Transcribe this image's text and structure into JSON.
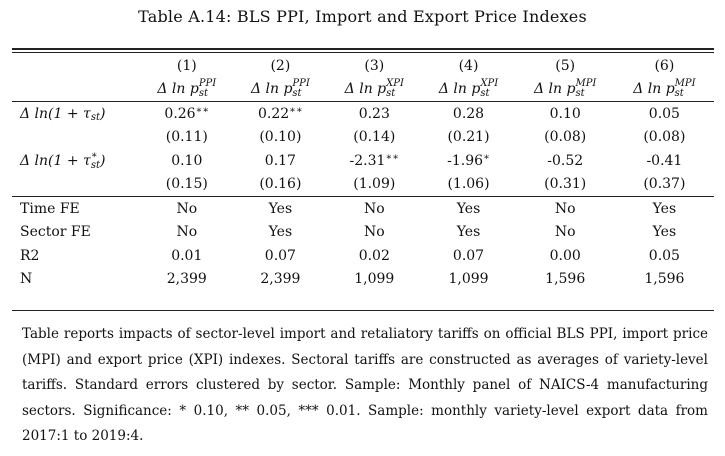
{
  "title": "Table A.14: BLS PPI, Import and Export Price Indexes",
  "columns": [
    {
      "number": "(1)",
      "dep_base": "Δ ln p",
      "dep_sup": "PPI",
      "dep_sub": "st"
    },
    {
      "number": "(2)",
      "dep_base": "Δ ln p",
      "dep_sup": "PPI",
      "dep_sub": "st"
    },
    {
      "number": "(3)",
      "dep_base": "Δ ln p",
      "dep_sup": "XPI",
      "dep_sub": "st"
    },
    {
      "number": "(4)",
      "dep_base": "Δ ln p",
      "dep_sup": "XPI",
      "dep_sub": "st"
    },
    {
      "number": "(5)",
      "dep_base": "Δ ln p",
      "dep_sup": "MPI",
      "dep_sub": "st"
    },
    {
      "number": "(6)",
      "dep_base": "Δ ln p",
      "dep_sup": "MPI",
      "dep_sub": "st"
    }
  ],
  "regressors": [
    {
      "label_pre": "Δ ln(1 + τ",
      "label_sub": "st",
      "label_sup": "",
      "label_post": ")",
      "coefficients": [
        {
          "value": "0.26",
          "stars": "∗∗"
        },
        {
          "value": "0.22",
          "stars": "∗∗"
        },
        {
          "value": "0.23",
          "stars": ""
        },
        {
          "value": "0.28",
          "stars": ""
        },
        {
          "value": "0.10",
          "stars": ""
        },
        {
          "value": "0.05",
          "stars": ""
        }
      ],
      "std_errors": [
        "(0.11)",
        "(0.10)",
        "(0.14)",
        "(0.21)",
        "(0.08)",
        "(0.08)"
      ]
    },
    {
      "label_pre": "Δ ln(1 + τ",
      "label_sub": "st",
      "label_sup": "∗",
      "label_post": ")",
      "coefficients": [
        {
          "value": "0.10",
          "stars": ""
        },
        {
          "value": "0.17",
          "stars": ""
        },
        {
          "value": "-2.31",
          "stars": "∗∗"
        },
        {
          "value": "-1.96",
          "stars": "∗"
        },
        {
          "value": "-0.52",
          "stars": ""
        },
        {
          "value": "-0.41",
          "stars": ""
        }
      ],
      "std_errors": [
        "(0.15)",
        "(0.16)",
        "(1.09)",
        "(1.06)",
        "(0.31)",
        "(0.37)"
      ]
    }
  ],
  "stats": [
    {
      "label": "Time FE",
      "values": [
        "No",
        "Yes",
        "No",
        "Yes",
        "No",
        "Yes"
      ]
    },
    {
      "label": "Sector FE",
      "values": [
        "No",
        "Yes",
        "No",
        "Yes",
        "No",
        "Yes"
      ]
    },
    {
      "label": "R2",
      "values": [
        "0.01",
        "0.07",
        "0.02",
        "0.07",
        "0.00",
        "0.05"
      ]
    },
    {
      "label": "N",
      "values": [
        "2,399",
        "2,399",
        "1,099",
        "1,099",
        "1,596",
        "1,596"
      ]
    }
  ],
  "note": "Table reports impacts of sector-level import and retaliatory tariffs on official BLS PPI, import price (MPI) and export price (XPI) indexes. Sectoral tariffs are constructed as averages of variety-level tariffs. Standard errors clustered by sector. Sample: Monthly panel of NAICS-4 manufacturing sectors. Significance: * 0.10, ** 0.05, *** 0.01. Sample: monthly variety-level export data from 2017:1 to 2019:4."
}
